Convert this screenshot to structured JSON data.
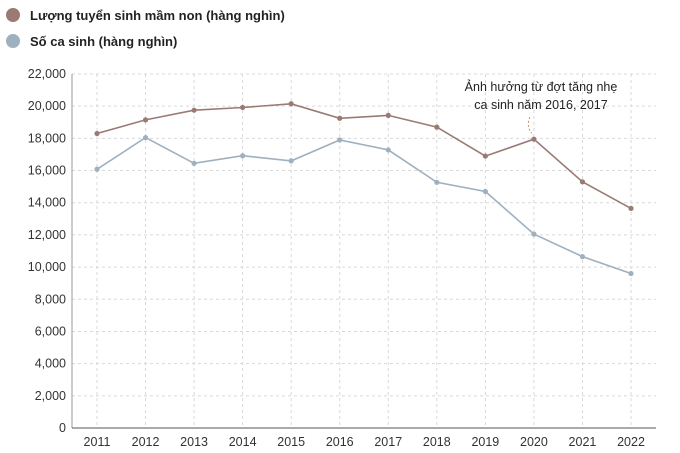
{
  "chart_data": {
    "type": "line",
    "title": "",
    "xlabel": "",
    "ylabel": "",
    "categories": [
      "2011",
      "2012",
      "2013",
      "2014",
      "2015",
      "2016",
      "2017",
      "2018",
      "2019",
      "2020",
      "2021",
      "2022"
    ],
    "ylim": [
      0,
      22000
    ],
    "yticks": [
      0,
      2000,
      4000,
      6000,
      8000,
      10000,
      12000,
      14000,
      16000,
      18000,
      20000,
      22000
    ],
    "ytick_labels": [
      "0",
      "2,000",
      "4,000",
      "6,000",
      "8,000",
      "10,000",
      "12,000",
      "14,000",
      "16,000",
      "18,000",
      "20,000",
      "22,000"
    ],
    "grid": true,
    "legend_position": "top-left",
    "series": [
      {
        "name": "Lượng tuyển sinh mầm non (hàng nghìn)",
        "color": "#9a7b74",
        "values": [
          18300,
          19150,
          19750,
          19920,
          20150,
          19250,
          19430,
          18700,
          16900,
          17950,
          15300,
          13650
        ]
      },
      {
        "name": "Số ca sinh (hàng nghìn)",
        "color": "#9fb0bf",
        "values": [
          16080,
          18050,
          16450,
          16920,
          16600,
          17900,
          17280,
          15270,
          14700,
          12050,
          10650,
          9600
        ]
      }
    ],
    "annotation": {
      "lines": [
        "Ảnh hưởng từ đợt tăng nhẹ",
        "ca sinh năm 2016, 2017"
      ],
      "target_category": "2020",
      "target_series": 0
    }
  }
}
